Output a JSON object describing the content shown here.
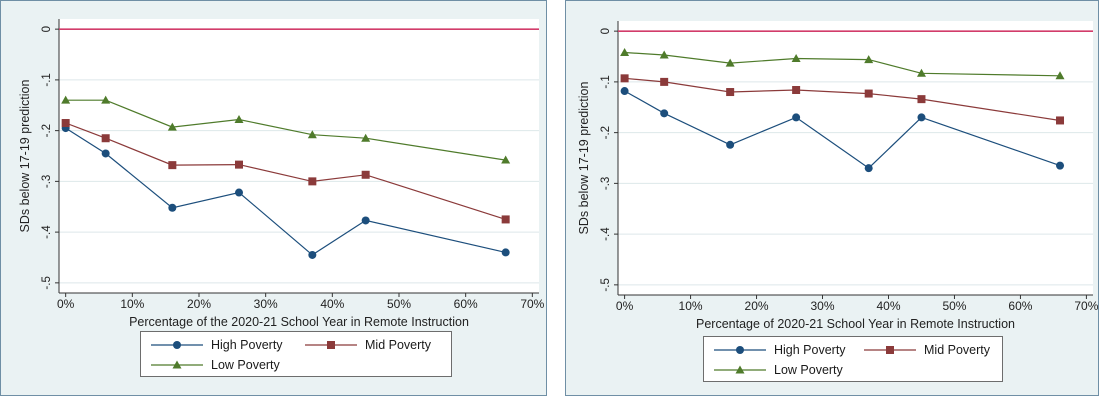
{
  "colors": {
    "high": "#1c4e7c",
    "mid": "#8b3a3a",
    "low": "#4f7b2b",
    "reference": "#d23c6a",
    "panel_bg": "#eaf2f3",
    "plot_bg": "#ffffff",
    "gridline": "#dde8ea"
  },
  "chart_data": [
    {
      "type": "line",
      "title": "",
      "xlabel": "Percentage of the 2020-21 School Year in Remote Instruction",
      "ylabel": "SDs below 17-19 prediction",
      "xlim": [
        -1,
        71
      ],
      "ylim": [
        -0.52,
        0.02
      ],
      "x_ticks": [
        0,
        10,
        20,
        30,
        40,
        50,
        60,
        70
      ],
      "x_tick_labels": [
        "0%",
        "10%",
        "20%",
        "30%",
        "40%",
        "50%",
        "60%",
        "70%"
      ],
      "y_ticks": [
        0,
        -0.1,
        -0.2,
        -0.3,
        -0.4,
        -0.5
      ],
      "y_tick_labels": [
        "0",
        "-.1",
        "-.2",
        "-.3",
        "-.4",
        "-.5"
      ],
      "reference_line": 0,
      "grid": true,
      "legend_position": "bottom",
      "x": [
        0,
        6,
        16,
        26,
        37,
        45,
        66
      ],
      "series": [
        {
          "name": "High Poverty",
          "marker": "circle",
          "values": [
            -0.195,
            -0.245,
            -0.352,
            -0.322,
            -0.445,
            -0.377,
            -0.44
          ]
        },
        {
          "name": "Mid Poverty",
          "marker": "square",
          "values": [
            -0.185,
            -0.215,
            -0.268,
            -0.267,
            -0.3,
            -0.287,
            -0.375
          ]
        },
        {
          "name": "Low Poverty",
          "marker": "triangle",
          "values": [
            -0.14,
            -0.14,
            -0.193,
            -0.178,
            -0.208,
            -0.215,
            -0.258
          ]
        }
      ]
    },
    {
      "type": "line",
      "title": "",
      "xlabel": "Percentage of 2020-21 School Year in Remote Instruction",
      "ylabel": "SDs below 17-19 prediction",
      "xlim": [
        -1,
        71
      ],
      "ylim": [
        -0.52,
        0.02
      ],
      "x_ticks": [
        0,
        10,
        20,
        30,
        40,
        50,
        60,
        70
      ],
      "x_tick_labels": [
        "0%",
        "10%",
        "20%",
        "30%",
        "40%",
        "50%",
        "60%",
        "70%"
      ],
      "y_ticks": [
        0,
        -0.1,
        -0.2,
        -0.3,
        -0.4,
        -0.5
      ],
      "y_tick_labels": [
        "0",
        "-.1",
        "-.2",
        "-.3",
        "-.4",
        "-.5"
      ],
      "reference_line": 0,
      "grid": true,
      "legend_position": "bottom",
      "x": [
        0,
        6,
        16,
        26,
        37,
        45,
        66
      ],
      "series": [
        {
          "name": "High Poverty",
          "marker": "circle",
          "values": [
            -0.118,
            -0.162,
            -0.224,
            -0.17,
            -0.27,
            -0.17,
            -0.265
          ]
        },
        {
          "name": "Mid Poverty",
          "marker": "square",
          "values": [
            -0.093,
            -0.1,
            -0.12,
            -0.116,
            -0.123,
            -0.134,
            -0.176
          ]
        },
        {
          "name": "Low Poverty",
          "marker": "triangle",
          "values": [
            -0.042,
            -0.047,
            -0.063,
            -0.054,
            -0.056,
            -0.083,
            -0.088
          ]
        }
      ]
    }
  ]
}
